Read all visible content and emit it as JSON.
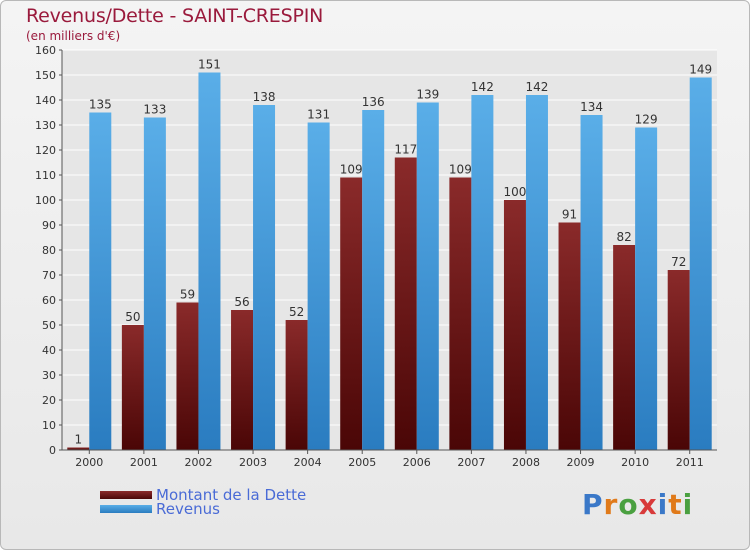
{
  "header": {
    "title": "Revenus/Dette - SAINT-CRESPIN",
    "subtitle": "(en milliers d'€)"
  },
  "colors": {
    "title": "#9a1a3c",
    "dette": "#7a1a1a",
    "revenus": "#4aa0e0",
    "grid": "#ffffff",
    "background": "#ebebeb"
  },
  "logo": {
    "text": "Proxiti",
    "colors": [
      "#3a78c8",
      "#e07a1a",
      "#4aa040",
      "#d83a3a",
      "#3a78c8",
      "#e07a1a",
      "#4aa040"
    ]
  },
  "chart_data": {
    "type": "bar",
    "title": "Revenus/Dette - SAINT-CRESPIN",
    "subtitle": "(en milliers d'€)",
    "categories": [
      "2000",
      "2001",
      "2002",
      "2003",
      "2004",
      "2005",
      "2006",
      "2007",
      "2008",
      "2009",
      "2010",
      "2011"
    ],
    "series": [
      {
        "name": "Montant de la Dette",
        "color": "#7a1a1a",
        "values": [
          1,
          50,
          59,
          56,
          52,
          109,
          117,
          109,
          100,
          91,
          82,
          72
        ]
      },
      {
        "name": "Revenus",
        "color": "#4aa0e0",
        "values": [
          135,
          133,
          151,
          138,
          131,
          136,
          139,
          142,
          142,
          134,
          129,
          149
        ]
      }
    ],
    "yticks": [
      0,
      10,
      20,
      30,
      40,
      50,
      60,
      70,
      80,
      90,
      100,
      110,
      120,
      130,
      140,
      150,
      160
    ],
    "ylim": [
      0,
      160
    ],
    "grid": true,
    "legend_position": "bottom-left"
  }
}
